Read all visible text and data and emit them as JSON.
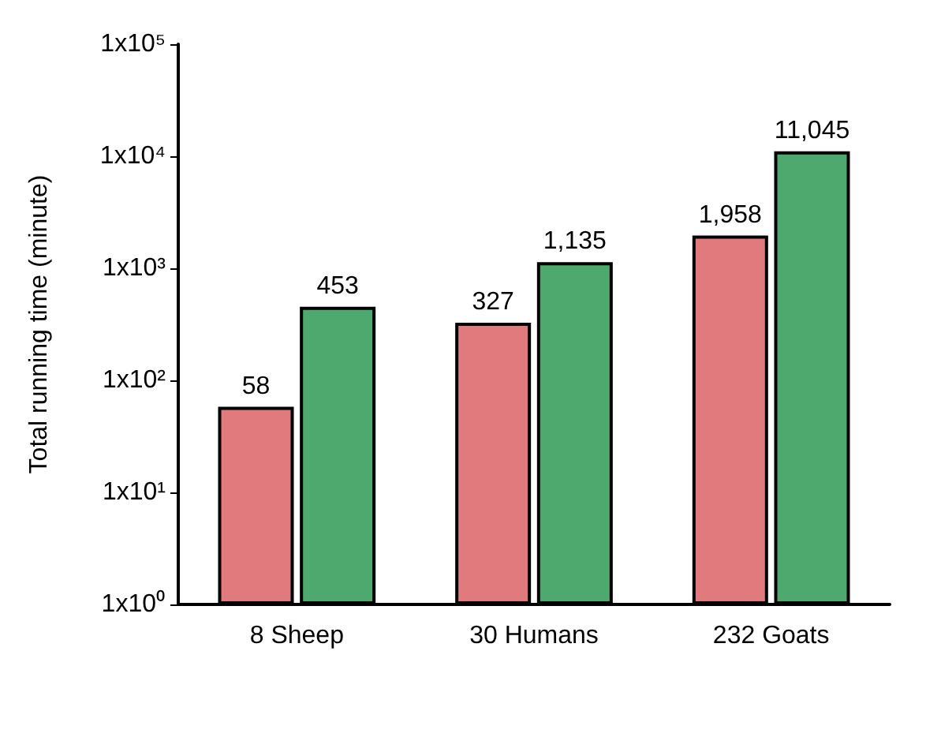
{
  "chart_data": {
    "type": "bar",
    "ylabel": "Total running time (minute)",
    "categories": [
      "8 Sheep",
      "30 Humans",
      "232 Goats"
    ],
    "series": [
      {
        "color": "#e07a7c",
        "values": [
          58,
          327,
          1958
        ],
        "value_labels": [
          "58",
          "327",
          "1,958"
        ]
      },
      {
        "color": "#4ea96f",
        "values": [
          453,
          1135,
          11045
        ],
        "value_labels": [
          "453",
          "1,135",
          "11,045"
        ]
      }
    ],
    "log": "y",
    "ylim": [
      1,
      100000
    ],
    "yticks": [
      {
        "value": 1,
        "label": "1x10⁰"
      },
      {
        "value": 10,
        "label": "1x10¹"
      },
      {
        "value": 100,
        "label": "1x10²"
      },
      {
        "value": 1000,
        "label": "1x10³"
      },
      {
        "value": 10000,
        "label": "1x10⁴"
      },
      {
        "value": 100000,
        "label": "1x10⁵"
      }
    ],
    "grid": false
  }
}
